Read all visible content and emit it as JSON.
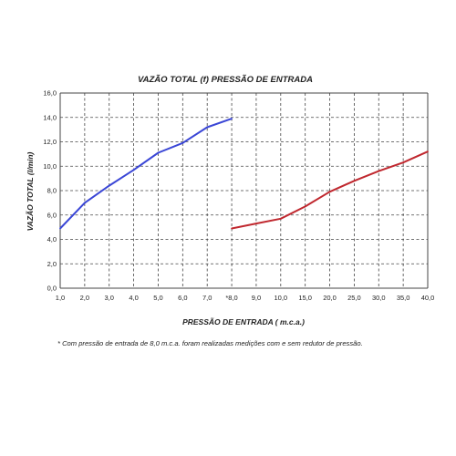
{
  "chart_data": {
    "type": "line",
    "title": "VAZÃO TOTAL (f) PRESSÃO DE ENTRADA",
    "xlabel": "PRESSÃO DE ENTRADA ( m.c.a.)",
    "ylabel": "VAZÃO TOTAL (l/min)",
    "categories": [
      "1,0",
      "2,0",
      "3,0",
      "4,0",
      "5,0",
      "6,0",
      "7,0",
      "*8,0",
      "9,0",
      "10,0",
      "15,0",
      "20,0",
      "25,0",
      "30,0",
      "35,0",
      "40,0"
    ],
    "ylim": [
      0,
      16
    ],
    "yticks": [
      "0,0",
      "2,0",
      "4,0",
      "6,0",
      "8,0",
      "10,0",
      "12,0",
      "14,0",
      "16,0"
    ],
    "grid": true,
    "series": [
      {
        "color": "#3a46d6",
        "x": [
          "1,0",
          "2,0",
          "3,0",
          "4,0",
          "5,0",
          "6,0",
          "7,0",
          "*8,0"
        ],
        "values": [
          4.9,
          7.0,
          8.4,
          9.7,
          11.1,
          11.9,
          13.2,
          13.9
        ]
      },
      {
        "color": "#c0282f",
        "x": [
          "*8,0",
          "9,0",
          "10,0",
          "15,0",
          "20,0",
          "25,0",
          "30,0",
          "35,0",
          "40,0"
        ],
        "values": [
          4.9,
          5.3,
          5.7,
          6.7,
          7.9,
          8.8,
          9.6,
          10.3,
          11.2
        ]
      }
    ]
  },
  "footnote": "* Com pressão de entrada de 8,0 m.c.a. foram realizadas medições com e sem redutor de pressão."
}
